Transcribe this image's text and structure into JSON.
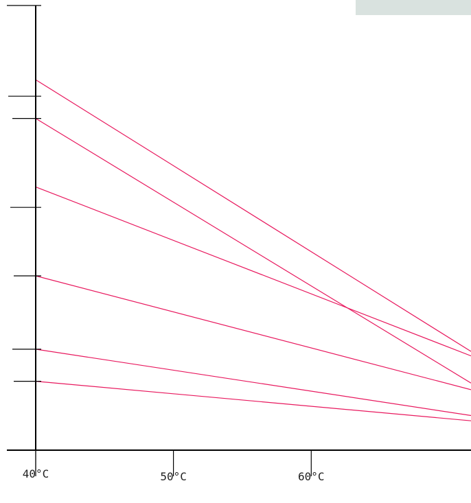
{
  "chart_data": {
    "type": "line",
    "title": "",
    "xlabel": "",
    "ylabel": "",
    "x_tick_labels": [
      "40°C",
      "50°C",
      "60°C"
    ],
    "x_ticks": [
      40,
      50,
      60
    ],
    "xlim": [
      40,
      71.6
    ],
    "grid": false,
    "legend": "none",
    "series": [
      {
        "x": [
          40,
          71.6
        ],
        "y": [
          0.833,
          0.222
        ]
      },
      {
        "x": [
          40,
          71.6
        ],
        "y": [
          0.746,
          0.151
        ]
      },
      {
        "x": [
          40,
          71.6
        ],
        "y": [
          0.592,
          0.212
        ]
      },
      {
        "x": [
          40,
          71.6
        ],
        "y": [
          0.392,
          0.136
        ]
      },
      {
        "x": [
          40,
          71.6
        ],
        "y": [
          0.227,
          0.078
        ]
      },
      {
        "x": [
          40,
          71.6
        ],
        "y": [
          0.155,
          0.066
        ]
      }
    ],
    "y_tick_positions": [
      1.0,
      0.796,
      0.746,
      0.546,
      0.392,
      0.227,
      0.155
    ],
    "colors": {
      "series": "#e8175d",
      "axis": "#000000",
      "corner_patch": "#d9e2df"
    }
  }
}
